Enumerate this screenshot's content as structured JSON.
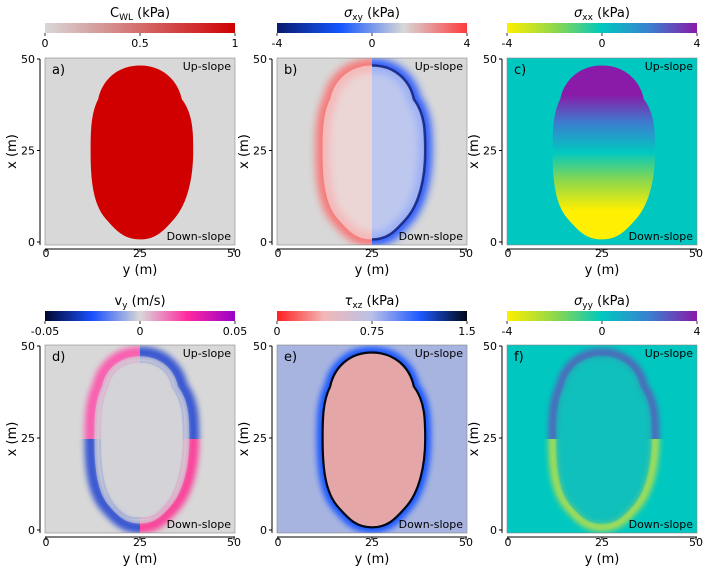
{
  "chart_data": [
    {
      "type": "heatmap",
      "panel": "a)",
      "title_main": "C",
      "title_sub": "WL",
      "title_unit": " (kPa)",
      "title_greek": false,
      "colorbar": {
        "min": 0,
        "max": 1,
        "ticks": [
          "0",
          "0.5",
          "1"
        ],
        "colors": [
          "#d8d8d8",
          "#d00000"
        ]
      },
      "xlabel": "y (m)",
      "ylabel": "x (m)",
      "xlim": [
        0,
        50
      ],
      "ylim": [
        0,
        50
      ],
      "xticks": [
        "0",
        "25",
        "50"
      ],
      "yticks": [
        "0",
        "25",
        "50"
      ],
      "annotations": {
        "top": "Up-slope",
        "bottom": "Down-slope"
      }
    },
    {
      "type": "heatmap",
      "panel": "b)",
      "title_main": "σ",
      "title_sub": "xy",
      "title_unit": " (kPa)",
      "title_greek": true,
      "colorbar": {
        "min": -4,
        "max": 4,
        "ticks": [
          "-4",
          "0",
          "4"
        ],
        "colors": [
          "#0a1a6e",
          "#1456ff",
          "#d8d8d8",
          "#ff3b3b"
        ]
      },
      "xlabel": "y (m)",
      "ylabel": "x (m)",
      "xlim": [
        0,
        50
      ],
      "ylim": [
        0,
        50
      ],
      "xticks": [
        "0",
        "25",
        "50"
      ],
      "yticks": [
        "0",
        "25",
        "50"
      ],
      "annotations": {
        "top": "Up-slope",
        "bottom": "Down-slope"
      }
    },
    {
      "type": "heatmap",
      "panel": "c)",
      "title_main": "σ",
      "title_sub": "xx",
      "title_unit": " (kPa)",
      "title_greek": true,
      "colorbar": {
        "min": -4,
        "max": 4,
        "ticks": [
          "-4",
          "0",
          "4"
        ],
        "colors": [
          "#ffef00",
          "#8fd84a",
          "#00c8c0",
          "#3a7fd0",
          "#8a1aa8"
        ]
      },
      "xlabel": "y (m)",
      "ylabel": "x (m)",
      "xlim": [
        0,
        50
      ],
      "ylim": [
        0,
        50
      ],
      "xticks": [
        "0",
        "25",
        "50"
      ],
      "yticks": [
        "0",
        "25",
        "50"
      ],
      "annotations": {
        "top": "Up-slope",
        "bottom": "Down-slope"
      }
    },
    {
      "type": "heatmap",
      "panel": "d)",
      "title_main": "v",
      "title_sub": "y",
      "title_unit": " (m/s)",
      "title_greek": false,
      "colorbar": {
        "min": -0.05,
        "max": 0.05,
        "ticks": [
          "-0.05",
          "0",
          "0.05"
        ],
        "colors": [
          "#000830",
          "#1a50ff",
          "#d8d8d8",
          "#ff2aa0",
          "#9a00c8"
        ]
      },
      "xlabel": "y (m)",
      "ylabel": "x (m)",
      "xlim": [
        0,
        50
      ],
      "ylim": [
        0,
        50
      ],
      "xticks": [
        "0",
        "25",
        "50"
      ],
      "yticks": [
        "0",
        "25",
        "50"
      ],
      "annotations": {
        "top": "Up-slope",
        "bottom": "Down-slope"
      }
    },
    {
      "type": "heatmap",
      "panel": "e)",
      "title_main": "τ",
      "title_sub": "xz",
      "title_unit": " (kPa)",
      "title_greek": true,
      "colorbar": {
        "min": 0,
        "max": 1.5,
        "ticks": [
          "0",
          "0.75",
          "1.5"
        ],
        "colors": [
          "#ff2020",
          "#f2b8b8",
          "#b8c0e8",
          "#1f5aff",
          "#000818"
        ]
      },
      "xlabel": "y (m)",
      "ylabel": "x (m)",
      "xlim": [
        0,
        50
      ],
      "ylim": [
        0,
        50
      ],
      "xticks": [
        "0",
        "25",
        "50"
      ],
      "yticks": [
        "0",
        "25",
        "50"
      ],
      "annotations": {
        "top": "Up-slope",
        "bottom": "Down-slope"
      }
    },
    {
      "type": "heatmap",
      "panel": "f)",
      "title_main": "σ",
      "title_sub": "yy",
      "title_unit": " (kPa)",
      "title_greek": true,
      "colorbar": {
        "min": -4,
        "max": 4,
        "ticks": [
          "-4",
          "0",
          "4"
        ],
        "colors": [
          "#ffef00",
          "#8fd84a",
          "#00c8c0",
          "#3a7fd0",
          "#8a1aa8"
        ]
      },
      "xlabel": "y (m)",
      "ylabel": "x (m)",
      "xlim": [
        0,
        50
      ],
      "ylim": [
        0,
        50
      ],
      "xticks": [
        "0",
        "25",
        "50"
      ],
      "yticks": [
        "0",
        "25",
        "50"
      ],
      "annotations": {
        "top": "Up-slope",
        "bottom": "Down-slope"
      }
    }
  ]
}
